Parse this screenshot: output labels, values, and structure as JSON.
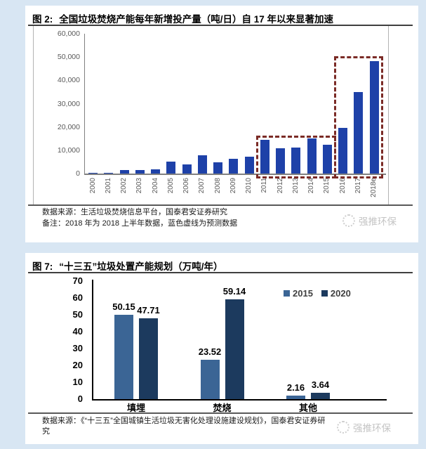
{
  "watermark": {
    "text": "强推环保"
  },
  "figure2": {
    "label": "图 2:",
    "title": "全国垃圾焚烧产能每年新增投产量（吨/日）自 17 年以来显著加速",
    "source": "数据来源：生活垃圾焚烧信息平台，国泰君安证券研究",
    "note": "备注：2018 年为 2018 上半年数据，蓝色虚线为预测数据"
  },
  "figure7": {
    "label": "图 7:",
    "title": "“十三五”垃圾处置产能规划（万吨/年）",
    "source_line1": "数据来源：《“十三五”全国城镇生活垃圾无害化处理设施建设规划》，国泰君安证券研",
    "source_line2": "究"
  },
  "chart_data": [
    {
      "type": "bar",
      "title": "全国垃圾焚烧产能每年新增投产量（吨/日）自 17 年以来显著加速",
      "ylabel": "吨/日",
      "categories": [
        "2000",
        "2001",
        "2002",
        "2003",
        "2004",
        "2005",
        "2006",
        "2007",
        "2008",
        "2009",
        "2010",
        "2011",
        "2012",
        "2013",
        "2014",
        "2015",
        "2016",
        "2017",
        "2018e"
      ],
      "values": [
        400,
        400,
        1600,
        1500,
        1900,
        5100,
        4000,
        7800,
        4900,
        6300,
        7200,
        14600,
        10800,
        11200,
        15000,
        12500,
        19700,
        35000,
        48300
      ],
      "ylim": [
        0,
        60000
      ],
      "ytick_labels": [
        "0",
        "10,000",
        "20,000",
        "30,000",
        "40,000",
        "50,000",
        "60,000"
      ],
      "bar_color": "#1e41a8",
      "grid": false,
      "legend_position": "none",
      "highlight_boxes": [
        {
          "from": "2011",
          "to": "2015",
          "top_value": 16300,
          "color": "#7b2b26",
          "style": "dashed"
        },
        {
          "from": "2016",
          "to": "2018e",
          "top_value": 50500,
          "color": "#7b2b26",
          "style": "dashed"
        }
      ]
    },
    {
      "type": "bar",
      "title": "“十三五”垃圾处置产能规划（万吨/年）",
      "ylabel": "万吨/年",
      "categories": [
        "填埋",
        "焚烧",
        "其他"
      ],
      "series": [
        {
          "name": "2015",
          "color": "#3b6595",
          "values": [
            50.15,
            23.52,
            2.16
          ]
        },
        {
          "name": "2020",
          "color": "#1c3a5e",
          "values": [
            47.71,
            59.14,
            3.64
          ]
        }
      ],
      "ylim": [
        0,
        70
      ],
      "ytick_labels": [
        "0",
        "10",
        "20",
        "30",
        "40",
        "50",
        "60",
        "70"
      ],
      "grid": false,
      "legend_position": "top-right",
      "data_labels": true
    }
  ]
}
